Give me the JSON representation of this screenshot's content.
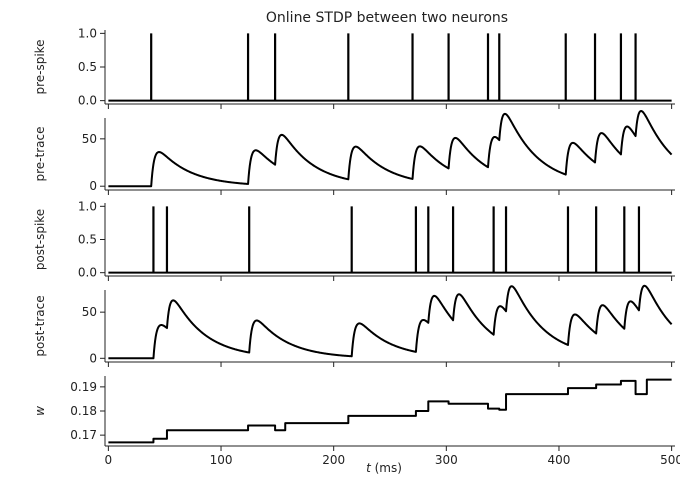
{
  "chart_data": {
    "type": "line",
    "title": "Online STDP between two neurons",
    "xlabel_italic": "t",
    "xlabel_rest": " (ms)",
    "xlim": [
      -3,
      503
    ],
    "xticks": [
      0,
      100,
      200,
      300,
      400,
      500
    ],
    "xtick_labels": [
      "0",
      "100",
      "200",
      "300",
      "400",
      "500"
    ],
    "panels": [
      {
        "id": "pre-spike",
        "ylabel": "pre-spike",
        "kind": "spikes",
        "ylim": [
          -0.05,
          1.05
        ],
        "yticks": [
          0.0,
          0.5,
          1.0
        ],
        "ytick_labels": [
          "0.0",
          "0.5",
          "1.0"
        ],
        "spike_times": [
          38,
          124,
          148,
          213,
          270,
          302,
          337,
          347,
          406,
          432,
          455,
          468
        ]
      },
      {
        "id": "pre-trace",
        "ylabel": "pre-trace",
        "kind": "trace",
        "ylim": [
          -4,
          72
        ],
        "yticks": [
          0,
          50
        ],
        "ytick_labels": [
          "0",
          "50"
        ],
        "spike_times": [
          38,
          124,
          148,
          213,
          270,
          302,
          337,
          347,
          406,
          432,
          455,
          468
        ]
      },
      {
        "id": "post-spike",
        "ylabel": "post-spike",
        "kind": "spikes",
        "ylim": [
          -0.05,
          1.05
        ],
        "yticks": [
          0.0,
          0.5,
          1.0
        ],
        "ytick_labels": [
          "0.0",
          "0.5",
          "1.0"
        ],
        "spike_times": [
          40,
          52,
          125,
          216,
          273,
          284,
          306,
          342,
          353,
          408,
          433,
          458,
          471
        ]
      },
      {
        "id": "post-trace",
        "ylabel": "post-trace",
        "kind": "trace",
        "ylim": [
          -4,
          74
        ],
        "yticks": [
          0,
          50
        ],
        "ytick_labels": [
          "0",
          "50"
        ],
        "spike_times": [
          40,
          52,
          125,
          216,
          273,
          284,
          306,
          342,
          353,
          408,
          433,
          458,
          471
        ]
      },
      {
        "id": "weight",
        "ylabel": "w",
        "kind": "step",
        "ylim": [
          0.1655,
          0.1945
        ],
        "yticks": [
          0.17,
          0.18,
          0.19
        ],
        "ytick_labels": [
          "0.17",
          "0.18",
          "0.19"
        ],
        "steps": [
          {
            "t": 0,
            "w": 0.167
          },
          {
            "t": 40,
            "w": 0.1685
          },
          {
            "t": 52,
            "w": 0.172
          },
          {
            "t": 124,
            "w": 0.174
          },
          {
            "t": 148,
            "w": 0.172
          },
          {
            "t": 157,
            "w": 0.175
          },
          {
            "t": 213,
            "w": 0.178
          },
          {
            "t": 273,
            "w": 0.18
          },
          {
            "t": 284,
            "w": 0.184
          },
          {
            "t": 302,
            "w": 0.183
          },
          {
            "t": 337,
            "w": 0.181
          },
          {
            "t": 347,
            "w": 0.1805
          },
          {
            "t": 353,
            "w": 0.187
          },
          {
            "t": 408,
            "w": 0.1895
          },
          {
            "t": 433,
            "w": 0.191
          },
          {
            "t": 455,
            "w": 0.1925
          },
          {
            "t": 468,
            "w": 0.187
          },
          {
            "t": 478,
            "w": 0.193
          },
          {
            "t": 500,
            "w": 0.193
          }
        ]
      }
    ]
  }
}
